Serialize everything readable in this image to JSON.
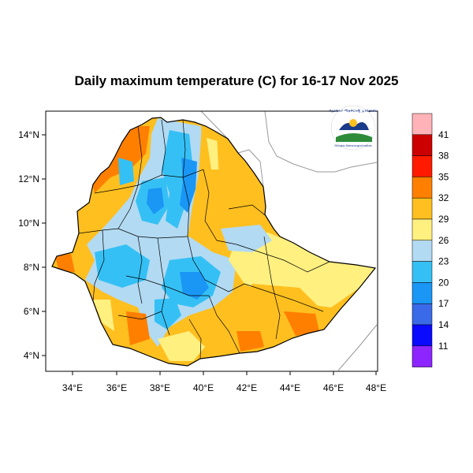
{
  "title": "Daily maximum temperature (C) for 16-17 Nov 2025",
  "map": {
    "x_axis_labels": [
      "34°E",
      "36°E",
      "38°E",
      "40°E",
      "42°E",
      "44°E",
      "46°E",
      "48°E"
    ],
    "y_axis_labels": [
      "14°N",
      "12°N",
      "10°N",
      "8°N",
      "6°N",
      "4°N"
    ],
    "lon_range": [
      33,
      48
    ],
    "lat_range": [
      3.2,
      14.9
    ],
    "region": "Ethiopia"
  },
  "logo": {
    "top_text": "የኢትዮጵያ ሚቲዎሮሎጂ ኢንስቲትዩት",
    "bottom_text": "Ethiopian Meteorological Institute"
  },
  "legend": {
    "colors": [
      "#ffb3b8",
      "#cc0000",
      "#ff1a00",
      "#ff7f00",
      "#ffbf1f",
      "#fff080",
      "#b2daf2",
      "#35c0f5",
      "#1a96f5",
      "#3b6ae8",
      "#0a0aff",
      "#8c25ff"
    ],
    "labels": [
      "41",
      "38",
      "35",
      "32",
      "29",
      "26",
      "23",
      "20",
      "17",
      "14",
      "11"
    ]
  },
  "colors": {
    "hot": "#ff7f00",
    "warm": "#ffbf1f",
    "mild": "#fff080",
    "cool": "#b2daf2",
    "cold": "#35c0f5",
    "colder": "#1a96f5"
  }
}
